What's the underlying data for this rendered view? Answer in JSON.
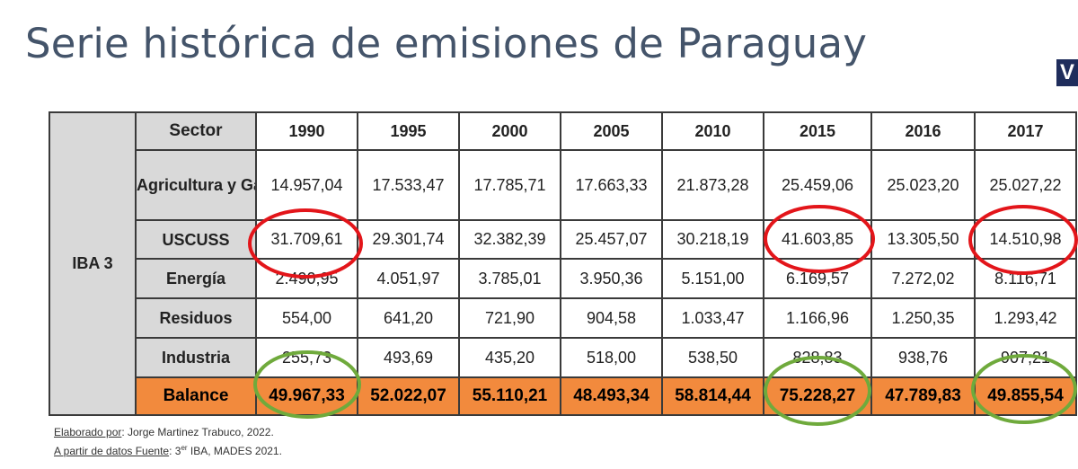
{
  "title": "Serie histórica de emisiones de Paraguay",
  "logo_letter": "V",
  "group_label": "IBA 3",
  "header": {
    "sector": "Sector",
    "years": [
      "1990",
      "1995",
      "2000",
      "2005",
      "2010",
      "2015",
      "2016",
      "2017"
    ]
  },
  "rows": [
    {
      "sector": "Agricultura y Ganadería",
      "values": [
        "14.957,04",
        "17.533,47",
        "17.785,71",
        "17.663,33",
        "21.873,28",
        "25.459,06",
        "25.023,20",
        "25.027,22"
      ]
    },
    {
      "sector": "USCUSS",
      "values": [
        "31.709,61",
        "29.301,74",
        "32.382,39",
        "25.457,07",
        "30.218,19",
        "41.603,85",
        "13.305,50",
        "14.510,98"
      ]
    },
    {
      "sector": "Energía",
      "values": [
        "2.490,95",
        "4.051,97",
        "3.785,01",
        "3.950,36",
        "5.151,00",
        "6.169,57",
        "7.272,02",
        "8.116,71"
      ]
    },
    {
      "sector": "Residuos",
      "values": [
        "554,00",
        "641,20",
        "721,90",
        "904,58",
        "1.033,47",
        "1.166,96",
        "1.250,35",
        "1.293,42"
      ]
    },
    {
      "sector": "Industria",
      "values": [
        "255,73",
        "493,69",
        "435,20",
        "518,00",
        "538,50",
        "828,83",
        "938,76",
        "907,21"
      ]
    }
  ],
  "balance": {
    "sector": "Balance",
    "values": [
      "49.967,33",
      "52.022,07",
      "55.110,21",
      "48.493,34",
      "58.814,44",
      "75.228,27",
      "47.789,83",
      "49.855,54"
    ]
  },
  "footer": {
    "line1_label": "Elaborado por",
    "line1_text": ": Jorge Martinez Trabuco,  2022.",
    "line2_label": "A partir de datos Fuente",
    "line2_pre": ": 3",
    "line2_sup": "er",
    "line2_post": " IBA, MADES 2021."
  },
  "annotation_colors": {
    "red": "#e3151a",
    "green": "#6faa3c"
  }
}
